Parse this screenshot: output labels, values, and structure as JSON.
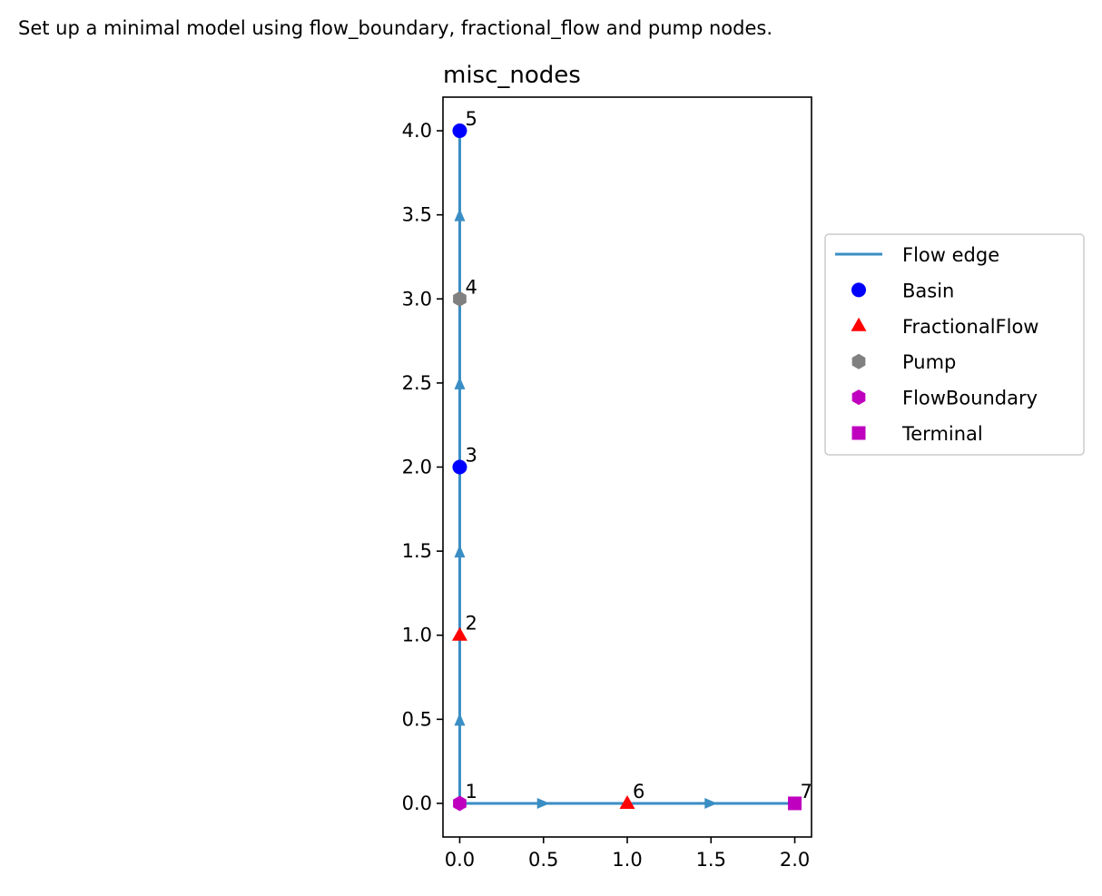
{
  "figure_title": "Set up a minimal model using flow_boundary, fractional_flow and pump nodes.",
  "chart_data": {
    "type": "scatter",
    "title": "misc_nodes",
    "xlabel": "",
    "ylabel": "",
    "xlim": [
      -0.1,
      2.1
    ],
    "ylim": [
      -0.2,
      4.2
    ],
    "xticks": [
      0.0,
      0.5,
      1.0,
      1.5,
      2.0
    ],
    "xtick_labels": [
      "0.0",
      "0.5",
      "1.0",
      "1.5",
      "2.0"
    ],
    "yticks": [
      0.0,
      0.5,
      1.0,
      1.5,
      2.0,
      2.5,
      3.0,
      3.5,
      4.0
    ],
    "ytick_labels": [
      "0.0",
      "0.5",
      "1.0",
      "1.5",
      "2.0",
      "2.5",
      "3.0",
      "3.5",
      "4.0"
    ],
    "grid": false,
    "legend_placement": "outside-right",
    "series": [
      {
        "name": "Basin",
        "marker": "circle",
        "color": "#0000ff",
        "points": [
          {
            "x": 0,
            "y": 2,
            "label": "3"
          },
          {
            "x": 0,
            "y": 4,
            "label": "5"
          }
        ]
      },
      {
        "name": "FractionalFlow",
        "marker": "triangle",
        "color": "#ff0000",
        "points": [
          {
            "x": 0,
            "y": 1,
            "label": "2"
          },
          {
            "x": 1,
            "y": 0,
            "label": "6"
          }
        ]
      },
      {
        "name": "Pump",
        "marker": "hexagon",
        "color": "#808080",
        "points": [
          {
            "x": 0,
            "y": 3,
            "label": "4"
          }
        ]
      },
      {
        "name": "FlowBoundary",
        "marker": "hexagon",
        "color": "#bf00bf",
        "points": [
          {
            "x": 0,
            "y": 0,
            "label": "1"
          }
        ]
      },
      {
        "name": "Terminal",
        "marker": "square",
        "color": "#bf00bf",
        "points": [
          {
            "x": 2,
            "y": 0,
            "label": "7"
          }
        ]
      }
    ],
    "edges": {
      "name": "Flow edge",
      "color": "#3a8ec4",
      "segments": [
        {
          "from": [
            0,
            0
          ],
          "to": [
            0,
            1
          ]
        },
        {
          "from": [
            0,
            1
          ],
          "to": [
            0,
            2
          ]
        },
        {
          "from": [
            0,
            2
          ],
          "to": [
            0,
            3
          ]
        },
        {
          "from": [
            0,
            3
          ],
          "to": [
            0,
            4
          ]
        },
        {
          "from": [
            0,
            0
          ],
          "to": [
            1,
            0
          ]
        },
        {
          "from": [
            1,
            0
          ],
          "to": [
            2,
            0
          ]
        }
      ]
    },
    "legend": [
      "Flow edge",
      "Basin",
      "FractionalFlow",
      "Pump",
      "FlowBoundary",
      "Terminal"
    ]
  }
}
